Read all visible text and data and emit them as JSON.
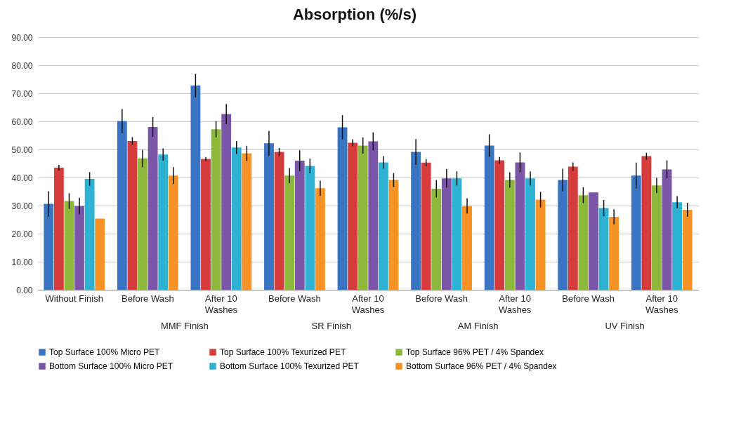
{
  "chart_data": {
    "type": "bar",
    "title": "Absorption (%/s)",
    "categories": [
      "Without Finish",
      "Before Wash",
      "After  10 Washes",
      "Before Wash",
      "After  10 Washes",
      "Before Wash",
      "After  10 Washes",
      "Before Wash",
      "After  10 Washes"
    ],
    "annotations": [
      "MMF Finish",
      "SR Finish",
      "AM Finish",
      "UV Finish"
    ],
    "series": [
      {
        "name": "Top Surface 100% Micro PET",
        "color": "#3a75c4",
        "values": [
          30.6,
          60.1,
          72.8,
          52.2,
          57.9,
          49.1,
          51.4,
          39.1,
          40.7
        ],
        "errors": [
          4.5,
          4.3,
          4.2,
          4.4,
          4.3,
          4.6,
          4,
          4,
          4.6
        ]
      },
      {
        "name": "Top Surface 100% Texurized PET",
        "color": "#d63c3c",
        "values": [
          43.5,
          53.0,
          46.6,
          49.1,
          52.4,
          45.3,
          46.1,
          43.9,
          47.6
        ],
        "errors": [
          1,
          1.4,
          0.7,
          1.4,
          1.2,
          1.3,
          1.2,
          1.5,
          1.2
        ]
      },
      {
        "name": "Top Surface 96% PET / 4% Spandex",
        "color": "#8db83b",
        "values": [
          31.6,
          46.8,
          57.2,
          40.7,
          51.4,
          36.0,
          39.1,
          33.7,
          37.2
        ],
        "errors": [
          2.8,
          3.1,
          2.9,
          2.7,
          2.9,
          3.1,
          2.7,
          2.8,
          2.7
        ]
      },
      {
        "name": "Bottom Surface 100% Micro PET",
        "color": "#7b55a8",
        "values": [
          29.8,
          58.0,
          62.6,
          46.0,
          52.9,
          39.7,
          45.4,
          34.7,
          42.9
        ],
        "errors": [
          3,
          3.5,
          3.6,
          3.7,
          3.2,
          3.3,
          3.5,
          null,
          3.2
        ]
      },
      {
        "name": "Bottom Surface 100% Texurized PET",
        "color": "#2eb2d4",
        "values": [
          39.5,
          48.2,
          50.7,
          44.1,
          45.4,
          39.7,
          39.7,
          29.1,
          31.2
        ],
        "errors": [
          2.4,
          2.2,
          2.3,
          2.6,
          2.2,
          2.5,
          2.5,
          2.9,
          2.2
        ]
      },
      {
        "name": "Bottom Surface 96% PET / 4% Spandex",
        "color": "#f79326",
        "values": [
          25.4,
          40.7,
          48.6,
          36.2,
          39.1,
          29.9,
          32.1,
          26.0,
          28.5
        ],
        "errors": [
          null,
          3,
          2.7,
          2.7,
          2.5,
          2.7,
          2.8,
          2.7,
          2.5
        ]
      }
    ],
    "ylim": [
      0,
      90
    ],
    "yticks": [
      {
        "value": 0,
        "label": "0.00"
      },
      {
        "value": 10,
        "label": "10.00"
      },
      {
        "value": 20,
        "label": "20.00"
      },
      {
        "value": 30,
        "label": "30.00"
      },
      {
        "value": 40,
        "label": "40.00"
      },
      {
        "value": 50,
        "label": "50.00"
      },
      {
        "value": 60,
        "label": "60.00"
      },
      {
        "value": 70,
        "label": "70.00"
      },
      {
        "value": 80,
        "label": "80.00"
      },
      {
        "value": 90,
        "label": "90.00"
      }
    ],
    "grid": true,
    "legend": "bottom"
  }
}
